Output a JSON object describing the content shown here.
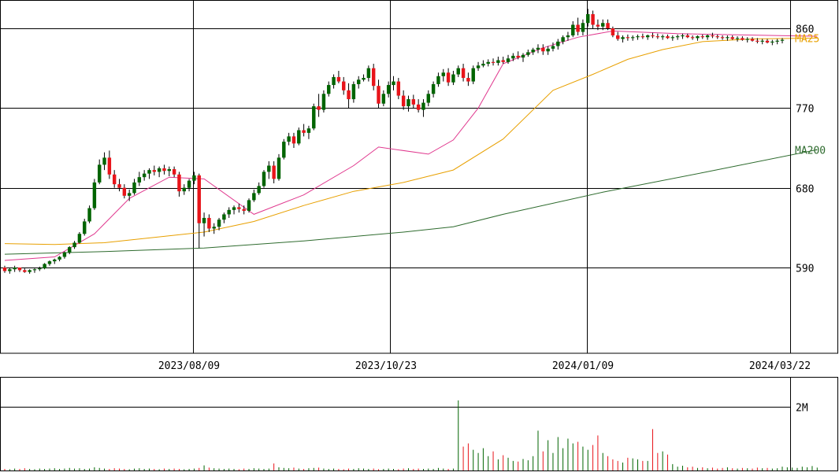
{
  "chart_data": [
    {
      "type": "candlestick",
      "title": "",
      "xlabel": "",
      "ylabel": "",
      "ylim": [
        500,
        880
      ],
      "y_ticks": [
        590,
        680,
        770,
        860
      ],
      "x_ticks": [
        "2023/08/09",
        "2023/10/23",
        "2024/01/09",
        "2024/03/22"
      ],
      "grid": true,
      "candles": [
        [
          590,
          592,
          584,
          586
        ],
        [
          586,
          590,
          583,
          588
        ],
        [
          588,
          592,
          585,
          590
        ],
        [
          590,
          590,
          585,
          587
        ],
        [
          587,
          589,
          584,
          585
        ],
        [
          585,
          588,
          583,
          587
        ],
        [
          587,
          589,
          584,
          588
        ],
        [
          588,
          591,
          586,
          589
        ],
        [
          589,
          595,
          588,
          594
        ],
        [
          594,
          598,
          592,
          597
        ],
        [
          597,
          600,
          594,
          599
        ],
        [
          599,
          603,
          597,
          602
        ],
        [
          602,
          608,
          600,
          607
        ],
        [
          607,
          614,
          605,
          613
        ],
        [
          613,
          620,
          611,
          618
        ],
        [
          618,
          630,
          617,
          628
        ],
        [
          628,
          645,
          626,
          642
        ],
        [
          642,
          660,
          640,
          657
        ],
        [
          657,
          690,
          655,
          686
        ],
        [
          686,
          712,
          684,
          706
        ],
        [
          706,
          720,
          700,
          714
        ],
        [
          714,
          722,
          690,
          695
        ],
        [
          695,
          700,
          680,
          684
        ],
        [
          684,
          690,
          676,
          680
        ],
        [
          680,
          684,
          668,
          671
        ],
        [
          671,
          678,
          665,
          674
        ],
        [
          674,
          690,
          672,
          686
        ],
        [
          686,
          698,
          682,
          692
        ],
        [
          692,
          700,
          688,
          696
        ],
        [
          696,
          702,
          690,
          700
        ],
        [
          700,
          705,
          694,
          698
        ],
        [
          698,
          704,
          692,
          702
        ],
        [
          702,
          706,
          695,
          699
        ],
        [
          699,
          704,
          693,
          701
        ],
        [
          701,
          704,
          692,
          695
        ],
        [
          695,
          698,
          670,
          676
        ],
        [
          676,
          684,
          672,
          680
        ],
        [
          680,
          690,
          676,
          688
        ],
        [
          688,
          698,
          684,
          694
        ],
        [
          694,
          696,
          612,
          640
        ],
        [
          640,
          652,
          625,
          646
        ],
        [
          646,
          650,
          630,
          634
        ],
        [
          634,
          640,
          628,
          636
        ],
        [
          636,
          646,
          632,
          644
        ],
        [
          644,
          652,
          640,
          650
        ],
        [
          650,
          658,
          646,
          655
        ],
        [
          655,
          660,
          650,
          658
        ],
        [
          658,
          662,
          652,
          656
        ],
        [
          656,
          660,
          650,
          654
        ],
        [
          654,
          668,
          652,
          666
        ],
        [
          666,
          678,
          664,
          674
        ],
        [
          674,
          686,
          672,
          682
        ],
        [
          682,
          700,
          680,
          698
        ],
        [
          698,
          710,
          690,
          705
        ],
        [
          705,
          710,
          685,
          690
        ],
        [
          690,
          718,
          688,
          714
        ],
        [
          714,
          735,
          712,
          732
        ],
        [
          732,
          742,
          728,
          738
        ],
        [
          738,
          742,
          725,
          730
        ],
        [
          730,
          748,
          728,
          745
        ],
        [
          745,
          752,
          738,
          742
        ],
        [
          742,
          750,
          735,
          747
        ],
        [
          747,
          775,
          745,
          772
        ],
        [
          772,
          786,
          760,
          768
        ],
        [
          768,
          790,
          765,
          786
        ],
        [
          786,
          800,
          783,
          796
        ],
        [
          796,
          808,
          792,
          805
        ],
        [
          805,
          812,
          798,
          800
        ],
        [
          800,
          805,
          785,
          790
        ],
        [
          790,
          798,
          770,
          780
        ],
        [
          780,
          800,
          776,
          797
        ],
        [
          797,
          806,
          792,
          802
        ],
        [
          802,
          808,
          800,
          804
        ],
        [
          804,
          818,
          800,
          815
        ],
        [
          815,
          820,
          790,
          795
        ],
        [
          795,
          802,
          770,
          775
        ],
        [
          775,
          790,
          772,
          786
        ],
        [
          786,
          800,
          782,
          796
        ],
        [
          796,
          806,
          790,
          800
        ],
        [
          800,
          804,
          780,
          784
        ],
        [
          784,
          790,
          768,
          772
        ],
        [
          772,
          784,
          766,
          780
        ],
        [
          780,
          785,
          770,
          774
        ],
        [
          774,
          780,
          765,
          768
        ],
        [
          768,
          780,
          760,
          776
        ],
        [
          776,
          790,
          772,
          786
        ],
        [
          786,
          800,
          782,
          797
        ],
        [
          797,
          810,
          794,
          806
        ],
        [
          806,
          814,
          800,
          810
        ],
        [
          810,
          815,
          795,
          799
        ],
        [
          799,
          812,
          796,
          808
        ],
        [
          808,
          818,
          805,
          815
        ],
        [
          815,
          820,
          800,
          804
        ],
        [
          804,
          810,
          795,
          800
        ],
        [
          800,
          818,
          797,
          815
        ],
        [
          815,
          822,
          812,
          818
        ],
        [
          818,
          824,
          816,
          820
        ],
        [
          820,
          825,
          817,
          822
        ],
        [
          822,
          826,
          818,
          821
        ],
        [
          821,
          828,
          818,
          824
        ],
        [
          824,
          828,
          820,
          822
        ],
        [
          822,
          830,
          820,
          826
        ],
        [
          826,
          832,
          823,
          829
        ],
        [
          829,
          834,
          825,
          827
        ],
        [
          827,
          832,
          822,
          830
        ],
        [
          830,
          836,
          828,
          833
        ],
        [
          833,
          838,
          830,
          836
        ],
        [
          836,
          842,
          832,
          838
        ],
        [
          838,
          842,
          830,
          834
        ],
        [
          834,
          840,
          830,
          837
        ],
        [
          837,
          844,
          834,
          840
        ],
        [
          840,
          848,
          836,
          845
        ],
        [
          845,
          852,
          842,
          850
        ],
        [
          850,
          856,
          846,
          852
        ],
        [
          852,
          868,
          850,
          864
        ],
        [
          864,
          872,
          852,
          856
        ],
        [
          856,
          870,
          852,
          866
        ],
        [
          866,
          882,
          862,
          876
        ],
        [
          876,
          880,
          860,
          864
        ],
        [
          864,
          870,
          858,
          862
        ],
        [
          862,
          870,
          858,
          866
        ],
        [
          866,
          870,
          858,
          860
        ],
        [
          860,
          862,
          850,
          852
        ],
        [
          852,
          856,
          846,
          848
        ],
        [
          848,
          852,
          844,
          850
        ],
        [
          850,
          853,
          846,
          849
        ],
        [
          849,
          852,
          846,
          850
        ],
        [
          850,
          853,
          847,
          851
        ],
        [
          851,
          854,
          848,
          850
        ],
        [
          850,
          853,
          847,
          852
        ],
        [
          852,
          855,
          849,
          851
        ],
        [
          851,
          854,
          848,
          850
        ],
        [
          850,
          853,
          847,
          851
        ],
        [
          851,
          853,
          848,
          849
        ],
        [
          849,
          852,
          846,
          850
        ],
        [
          850,
          853,
          847,
          851
        ],
        [
          851,
          854,
          848,
          852
        ],
        [
          852,
          854,
          849,
          850
        ],
        [
          850,
          852,
          847,
          849
        ],
        [
          849,
          852,
          846,
          851
        ],
        [
          851,
          853,
          848,
          850
        ],
        [
          850,
          853,
          847,
          852
        ],
        [
          852,
          855,
          849,
          851
        ],
        [
          851,
          853,
          848,
          850
        ],
        [
          850,
          852,
          847,
          849
        ],
        [
          849,
          852,
          846,
          850
        ],
        [
          850,
          852,
          847,
          848
        ],
        [
          848,
          851,
          845,
          849
        ],
        [
          849,
          851,
          846,
          847
        ],
        [
          847,
          850,
          844,
          848
        ],
        [
          848,
          850,
          845,
          846
        ],
        [
          846,
          849,
          843,
          845
        ],
        [
          845,
          848,
          842,
          846
        ],
        [
          846,
          848,
          843,
          844
        ],
        [
          844,
          847,
          841,
          845
        ],
        [
          845,
          848,
          842,
          846
        ],
        [
          846,
          849,
          843,
          847
        ]
      ],
      "series": [
        {
          "name": "MA25",
          "color": "#e8a000",
          "values": [
            [
              0,
              617
            ],
            [
              10,
              616
            ],
            [
              20,
              618
            ],
            [
              30,
              624
            ],
            [
              40,
              630
            ],
            [
              50,
              642
            ],
            [
              60,
              660
            ],
            [
              70,
              676
            ],
            [
              80,
              686
            ],
            [
              90,
              700
            ],
            [
              100,
              735
            ],
            [
              110,
              790
            ],
            [
              118,
              808
            ],
            [
              125,
              825
            ],
            [
              132,
              836
            ],
            [
              140,
              845
            ],
            [
              150,
              848
            ],
            [
              163,
              849
            ]
          ]
        },
        {
          "name": "MA200",
          "color": "#2e6b2e",
          "values": [
            [
              0,
              605
            ],
            [
              20,
              608
            ],
            [
              40,
              612
            ],
            [
              60,
              620
            ],
            [
              80,
              630
            ],
            [
              90,
              636
            ],
            [
              100,
              650
            ],
            [
              120,
              675
            ],
            [
              140,
              697
            ],
            [
              163,
              723
            ]
          ]
        },
        {
          "name": "",
          "color": "#e0388e",
          "values": [
            [
              0,
              598
            ],
            [
              10,
              602
            ],
            [
              18,
              628
            ],
            [
              25,
              668
            ],
            [
              33,
              692
            ],
            [
              40,
              690
            ],
            [
              50,
              650
            ],
            [
              60,
              672
            ],
            [
              70,
              705
            ],
            [
              75,
              726
            ],
            [
              85,
              718
            ],
            [
              90,
              734
            ],
            [
              95,
              770
            ],
            [
              100,
              820
            ],
            [
              108,
              838
            ],
            [
              115,
              850
            ],
            [
              122,
              857
            ],
            [
              135,
              854
            ],
            [
              163,
              851
            ]
          ]
        }
      ]
    },
    {
      "type": "bar",
      "title": "",
      "xlabel": "",
      "ylabel": "",
      "ylim": [
        0,
        2.7
      ],
      "y_ticks": [
        2
      ],
      "y_tick_labels": [
        "2M"
      ],
      "values": [
        0.05,
        0.04,
        0.06,
        0.05,
        0.07,
        0.05,
        0.04,
        0.06,
        0.05,
        0.06,
        0.07,
        0.05,
        0.06,
        0.08,
        0.06,
        0.07,
        0.05,
        0.06,
        0.1,
        0.08,
        0.06,
        0.05,
        0.07,
        0.06,
        0.05,
        0.04,
        0.06,
        0.07,
        0.05,
        0.06,
        0.05,
        0.04,
        0.06,
        0.05,
        0.06,
        0.05,
        0.04,
        0.05,
        0.06,
        0.08,
        0.16,
        0.09,
        0.07,
        0.06,
        0.05,
        0.06,
        0.05,
        0.04,
        0.06,
        0.05,
        0.07,
        0.06,
        0.05,
        0.06,
        0.22,
        0.1,
        0.08,
        0.07,
        0.09,
        0.06,
        0.05,
        0.07,
        0.08,
        0.09,
        0.06,
        0.05,
        0.06,
        0.05,
        0.04,
        0.06,
        0.05,
        0.07,
        0.06,
        0.05,
        0.06,
        0.04,
        0.05,
        0.06,
        0.05,
        0.04,
        0.06,
        0.07,
        0.05,
        0.06,
        0.05,
        0.06,
        0.05,
        0.08,
        0.06,
        0.05,
        0.06,
        2.2,
        0.75,
        0.85,
        0.65,
        0.55,
        0.7,
        0.45,
        0.6,
        0.35,
        0.48,
        0.4,
        0.3,
        0.28,
        0.36,
        0.32,
        0.45,
        1.25,
        0.6,
        0.95,
        0.55,
        1.05,
        0.7,
        1.0,
        0.85,
        0.9,
        0.75,
        0.65,
        0.8,
        1.1,
        0.55,
        0.45,
        0.35,
        0.3,
        0.25,
        0.4,
        0.38,
        0.35,
        0.3,
        0.3,
        1.3,
        0.55,
        0.6,
        0.5,
        0.2,
        0.12,
        0.15,
        0.1,
        0.12,
        0.08,
        0.1,
        0.07,
        0.09,
        0.06,
        0.08,
        0.1,
        0.07,
        0.06,
        0.08,
        0.07,
        0.06,
        0.09,
        0.07,
        0.08,
        0.06,
        0.07,
        0.12,
        0.1,
        0.09,
        0.08,
        0.12,
        0.1,
        0.14,
        0.09
      ]
    }
  ]
}
